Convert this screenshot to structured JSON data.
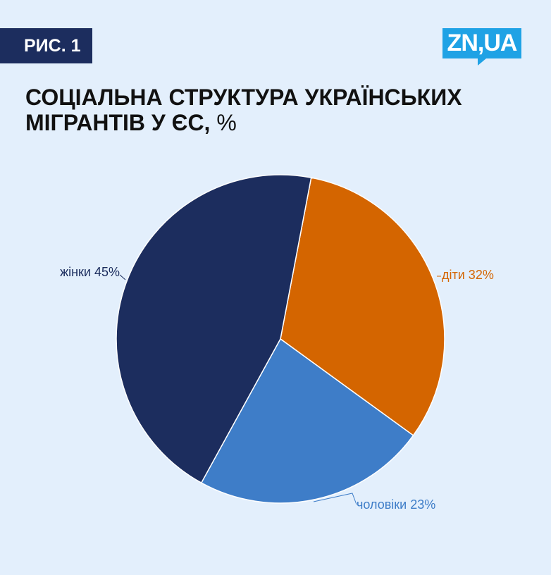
{
  "badge": "РИС. 1",
  "logo": "ZN,UA",
  "title": "СОЦІАЛЬНА СТРУКТУРА УКРАЇНСЬКИХ",
  "title_line2": "МІГРАНТІВ У ЄС,",
  "title_unit": "%",
  "chart_data": {
    "type": "pie",
    "unit": "%",
    "slices": [
      {
        "label": "діти 32%",
        "name": "діти",
        "value": 32,
        "color": "#d46500"
      },
      {
        "label": "чоловіки 23%",
        "name": "чоловіки",
        "value": 23,
        "color": "#3e7dc8"
      },
      {
        "label": "жінки 45%",
        "name": "жінки",
        "value": 45,
        "color": "#1c2d5e"
      }
    ],
    "legend": "none"
  }
}
